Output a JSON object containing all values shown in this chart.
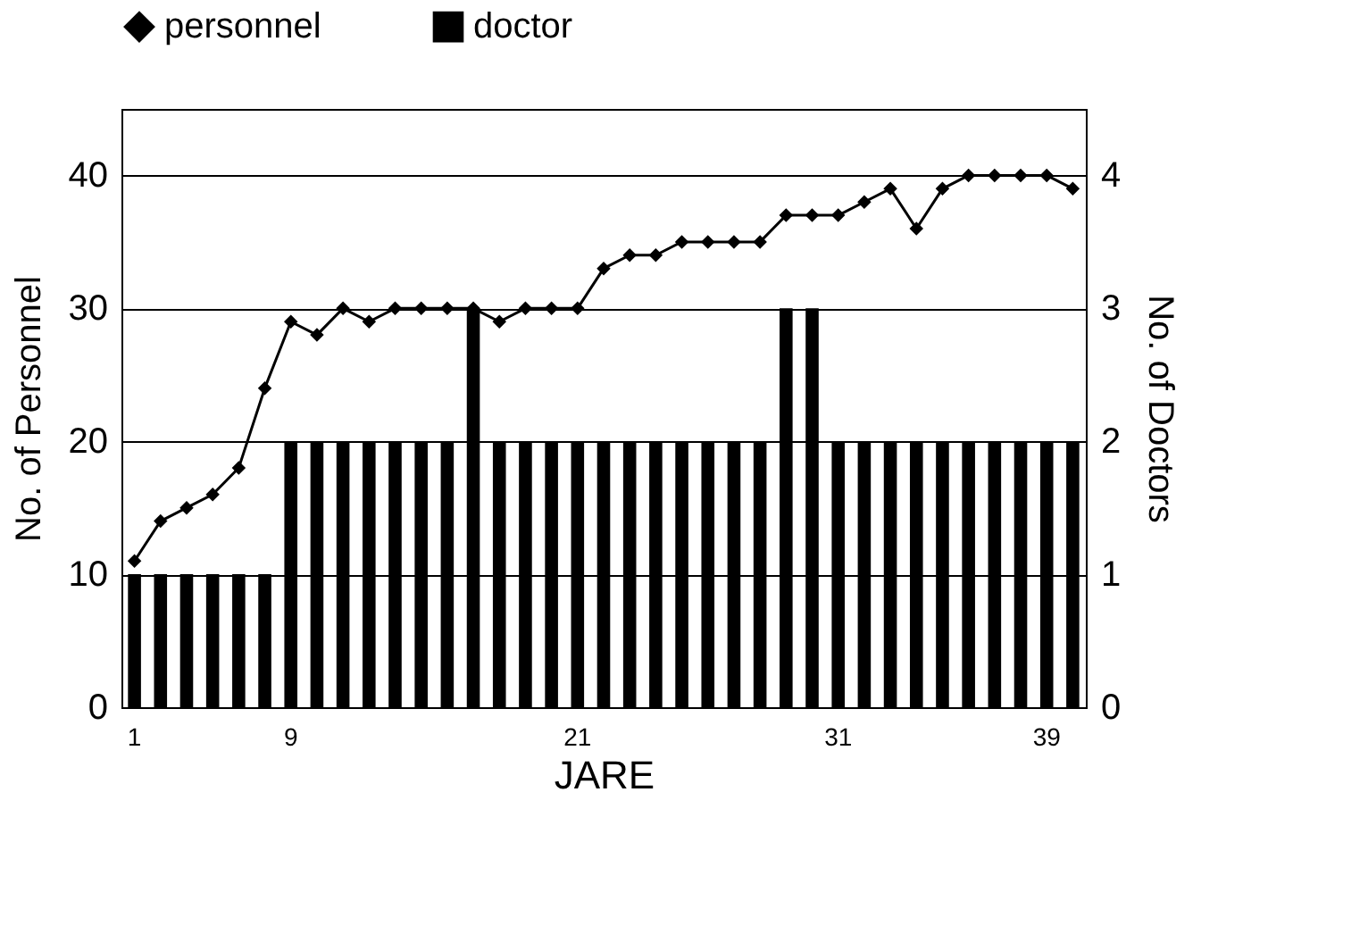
{
  "chart_data": {
    "type": "bar",
    "xlabel": "JARE",
    "ylabel": "No. of  Personnel",
    "y2label": "No. of  Doctors",
    "categories": [
      "1",
      null,
      null,
      null,
      null,
      null,
      "9",
      null,
      null,
      null,
      null,
      null,
      null,
      null,
      null,
      null,
      null,
      "21",
      null,
      null,
      null,
      null,
      null,
      null,
      null,
      null,
      null,
      "31",
      null,
      null,
      null,
      null,
      null,
      null,
      null,
      "39",
      null
    ],
    "series": [
      {
        "name": "personnel",
        "type": "line",
        "color": "#000000",
        "marker": "diamond",
        "axis": "y",
        "values": [
          11,
          14,
          15,
          16,
          18,
          24,
          29,
          28,
          30,
          29,
          30,
          30,
          30,
          30,
          29,
          30,
          30,
          30,
          33,
          34,
          34,
          35,
          35,
          35,
          35,
          37,
          37,
          37,
          38,
          39,
          36,
          39,
          40,
          40,
          40,
          40,
          39
        ]
      },
      {
        "name": "doctor",
        "type": "bar",
        "color": "#000000",
        "axis": "y2",
        "values": [
          1,
          1,
          1,
          1,
          1,
          1,
          2,
          2,
          2,
          2,
          2,
          2,
          2,
          3,
          2,
          2,
          2,
          2,
          2,
          2,
          2,
          2,
          2,
          2,
          2,
          3,
          3,
          2,
          2,
          2,
          2,
          2,
          2,
          2,
          2,
          2,
          2
        ]
      }
    ],
    "ylim": [
      0,
      45
    ],
    "yticks": [
      0,
      10,
      20,
      30,
      40
    ],
    "y2lim": [
      0,
      4.5
    ],
    "y2ticks": [
      0,
      1,
      2,
      3,
      4
    ],
    "grid": "y",
    "legend": "top"
  }
}
